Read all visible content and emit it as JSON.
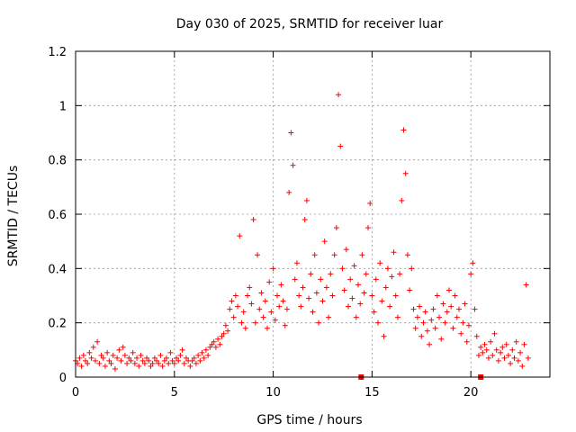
{
  "chart_data": {
    "type": "scatter",
    "title": "Day 030 of 2025, SRMTID for receiver luar",
    "xlabel": "GPS time / hours",
    "ylabel": "SRMTID / TECUs",
    "xlim": [
      0,
      24
    ],
    "ylim": [
      0,
      1.2
    ],
    "xticks": [
      0,
      5,
      10,
      15,
      20
    ],
    "yticks": [
      0,
      0.2,
      0.4,
      0.6,
      0.8,
      1,
      1.2
    ],
    "ytick_labels": [
      "0",
      "0.2",
      "0.4",
      "0.6",
      "0.8",
      "1",
      "1.2"
    ],
    "grid": true,
    "marker": "+",
    "color": "#ff0000",
    "ground_markers": [
      {
        "x": 14.45,
        "y": 0
      },
      {
        "x": 20.5,
        "y": 0
      }
    ],
    "series": [
      {
        "name": "SRMTID",
        "points": [
          [
            0.0,
            0.06
          ],
          [
            0.1,
            0.05
          ],
          [
            0.2,
            0.07
          ],
          [
            0.3,
            0.04
          ],
          [
            0.4,
            0.08
          ],
          [
            0.5,
            0.06
          ],
          [
            0.6,
            0.05
          ],
          [
            0.7,
            0.09
          ],
          [
            0.8,
            0.07
          ],
          [
            0.9,
            0.11
          ],
          [
            1.0,
            0.06
          ],
          [
            1.1,
            0.13
          ],
          [
            1.2,
            0.05
          ],
          [
            1.3,
            0.08
          ],
          [
            1.4,
            0.07
          ],
          [
            1.5,
            0.04
          ],
          [
            1.6,
            0.09
          ],
          [
            1.7,
            0.06
          ],
          [
            1.8,
            0.05
          ],
          [
            1.9,
            0.08
          ],
          [
            2.0,
            0.03
          ],
          [
            2.1,
            0.07
          ],
          [
            2.2,
            0.1
          ],
          [
            2.3,
            0.06
          ],
          [
            2.4,
            0.11
          ],
          [
            2.5,
            0.08
          ],
          [
            2.6,
            0.05
          ],
          [
            2.7,
            0.07
          ],
          [
            2.8,
            0.06
          ],
          [
            2.9,
            0.09
          ],
          [
            3.0,
            0.05
          ],
          [
            3.1,
            0.07
          ],
          [
            3.2,
            0.04
          ],
          [
            3.3,
            0.08
          ],
          [
            3.4,
            0.06
          ],
          [
            3.5,
            0.05
          ],
          [
            3.6,
            0.07
          ],
          [
            3.7,
            0.06
          ],
          [
            3.8,
            0.04
          ],
          [
            3.9,
            0.05
          ],
          [
            4.0,
            0.07
          ],
          [
            4.1,
            0.06
          ],
          [
            4.2,
            0.05
          ],
          [
            4.3,
            0.08
          ],
          [
            4.4,
            0.04
          ],
          [
            4.5,
            0.06
          ],
          [
            4.6,
            0.07
          ],
          [
            4.7,
            0.05
          ],
          [
            4.8,
            0.09
          ],
          [
            4.9,
            0.06
          ],
          [
            5.0,
            0.05
          ],
          [
            5.1,
            0.07
          ],
          [
            5.2,
            0.06
          ],
          [
            5.3,
            0.08
          ],
          [
            5.4,
            0.1
          ],
          [
            5.5,
            0.05
          ],
          [
            5.6,
            0.07
          ],
          [
            5.7,
            0.06
          ],
          [
            5.8,
            0.04
          ],
          [
            5.9,
            0.06
          ],
          [
            6.0,
            0.07
          ],
          [
            6.1,
            0.05
          ],
          [
            6.2,
            0.08
          ],
          [
            6.3,
            0.06
          ],
          [
            6.4,
            0.09
          ],
          [
            6.5,
            0.07
          ],
          [
            6.6,
            0.1
          ],
          [
            6.7,
            0.08
          ],
          [
            6.8,
            0.11
          ],
          [
            6.9,
            0.12
          ],
          [
            7.0,
            0.13
          ],
          [
            7.1,
            0.11
          ],
          [
            7.2,
            0.14
          ],
          [
            7.3,
            0.12
          ],
          [
            7.4,
            0.15
          ],
          [
            7.5,
            0.16
          ],
          [
            7.6,
            0.19
          ],
          [
            7.7,
            0.17
          ],
          [
            7.8,
            0.25
          ],
          [
            7.9,
            0.28
          ],
          [
            8.0,
            0.22
          ],
          [
            8.1,
            0.3
          ],
          [
            8.2,
            0.26
          ],
          [
            8.3,
            0.52
          ],
          [
            8.4,
            0.2
          ],
          [
            8.5,
            0.24
          ],
          [
            8.6,
            0.18
          ],
          [
            8.7,
            0.3
          ],
          [
            8.8,
            0.33
          ],
          [
            8.9,
            0.27
          ],
          [
            9.0,
            0.58
          ],
          [
            9.1,
            0.2
          ],
          [
            9.2,
            0.45
          ],
          [
            9.3,
            0.25
          ],
          [
            9.4,
            0.31
          ],
          [
            9.5,
            0.22
          ],
          [
            9.6,
            0.28
          ],
          [
            9.7,
            0.18
          ],
          [
            9.8,
            0.35
          ],
          [
            9.9,
            0.24
          ],
          [
            10.0,
            0.4
          ],
          [
            10.1,
            0.21
          ],
          [
            10.2,
            0.3
          ],
          [
            10.3,
            0.26
          ],
          [
            10.4,
            0.34
          ],
          [
            10.5,
            0.28
          ],
          [
            10.6,
            0.19
          ],
          [
            10.7,
            0.25
          ],
          [
            10.8,
            0.68
          ],
          [
            10.9,
            0.9
          ],
          [
            11.0,
            0.78
          ],
          [
            11.1,
            0.36
          ],
          [
            11.2,
            0.42
          ],
          [
            11.3,
            0.3
          ],
          [
            11.4,
            0.26
          ],
          [
            11.5,
            0.33
          ],
          [
            11.6,
            0.58
          ],
          [
            11.7,
            0.65
          ],
          [
            11.8,
            0.29
          ],
          [
            11.9,
            0.38
          ],
          [
            12.0,
            0.24
          ],
          [
            12.1,
            0.45
          ],
          [
            12.2,
            0.31
          ],
          [
            12.3,
            0.2
          ],
          [
            12.4,
            0.36
          ],
          [
            12.5,
            0.28
          ],
          [
            12.6,
            0.5
          ],
          [
            12.7,
            0.33
          ],
          [
            12.8,
            0.22
          ],
          [
            12.9,
            0.38
          ],
          [
            13.0,
            0.3
          ],
          [
            13.1,
            0.45
          ],
          [
            13.2,
            0.55
          ],
          [
            13.3,
            1.04
          ],
          [
            13.4,
            0.85
          ],
          [
            13.5,
            0.4
          ],
          [
            13.6,
            0.32
          ],
          [
            13.7,
            0.47
          ],
          [
            13.8,
            0.26
          ],
          [
            13.9,
            0.36
          ],
          [
            14.0,
            0.29
          ],
          [
            14.1,
            0.41
          ],
          [
            14.2,
            0.22
          ],
          [
            14.3,
            0.34
          ],
          [
            14.4,
            0.27
          ],
          [
            14.5,
            0.45
          ],
          [
            14.6,
            0.31
          ],
          [
            14.7,
            0.38
          ],
          [
            14.8,
            0.55
          ],
          [
            14.9,
            0.64
          ],
          [
            15.0,
            0.3
          ],
          [
            15.1,
            0.24
          ],
          [
            15.2,
            0.36
          ],
          [
            15.3,
            0.2
          ],
          [
            15.4,
            0.42
          ],
          [
            15.5,
            0.28
          ],
          [
            15.6,
            0.15
          ],
          [
            15.7,
            0.33
          ],
          [
            15.8,
            0.4
          ],
          [
            15.9,
            0.26
          ],
          [
            16.0,
            0.37
          ],
          [
            16.1,
            0.46
          ],
          [
            16.2,
            0.3
          ],
          [
            16.3,
            0.22
          ],
          [
            16.4,
            0.38
          ],
          [
            16.5,
            0.65
          ],
          [
            16.6,
            0.91
          ],
          [
            16.7,
            0.75
          ],
          [
            16.8,
            0.45
          ],
          [
            16.9,
            0.32
          ],
          [
            17.0,
            0.4
          ],
          [
            17.1,
            0.25
          ],
          [
            17.2,
            0.18
          ],
          [
            17.3,
            0.22
          ],
          [
            17.4,
            0.26
          ],
          [
            17.5,
            0.15
          ],
          [
            17.6,
            0.2
          ],
          [
            17.7,
            0.24
          ],
          [
            17.8,
            0.17
          ],
          [
            17.9,
            0.12
          ],
          [
            18.0,
            0.21
          ],
          [
            18.1,
            0.25
          ],
          [
            18.2,
            0.18
          ],
          [
            18.3,
            0.3
          ],
          [
            18.4,
            0.22
          ],
          [
            18.5,
            0.14
          ],
          [
            18.6,
            0.27
          ],
          [
            18.7,
            0.2
          ],
          [
            18.8,
            0.24
          ],
          [
            18.9,
            0.32
          ],
          [
            19.0,
            0.26
          ],
          [
            19.1,
            0.18
          ],
          [
            19.2,
            0.3
          ],
          [
            19.3,
            0.22
          ],
          [
            19.4,
            0.25
          ],
          [
            19.5,
            0.16
          ],
          [
            19.6,
            0.2
          ],
          [
            19.7,
            0.27
          ],
          [
            19.8,
            0.13
          ],
          [
            19.9,
            0.19
          ],
          [
            20.0,
            0.38
          ],
          [
            20.1,
            0.42
          ],
          [
            20.2,
            0.25
          ],
          [
            20.3,
            0.15
          ],
          [
            20.4,
            0.08
          ],
          [
            20.5,
            0.11
          ],
          [
            20.6,
            0.09
          ],
          [
            20.7,
            0.12
          ],
          [
            20.8,
            0.1
          ],
          [
            20.9,
            0.07
          ],
          [
            21.0,
            0.13
          ],
          [
            21.1,
            0.08
          ],
          [
            21.2,
            0.16
          ],
          [
            21.3,
            0.1
          ],
          [
            21.4,
            0.06
          ],
          [
            21.5,
            0.09
          ],
          [
            21.6,
            0.11
          ],
          [
            21.7,
            0.07
          ],
          [
            21.8,
            0.12
          ],
          [
            21.9,
            0.08
          ],
          [
            22.0,
            0.05
          ],
          [
            22.1,
            0.1
          ],
          [
            22.2,
            0.07
          ],
          [
            22.3,
            0.13
          ],
          [
            22.4,
            0.06
          ],
          [
            22.5,
            0.09
          ],
          [
            22.6,
            0.04
          ],
          [
            22.7,
            0.12
          ],
          [
            22.8,
            0.34
          ],
          [
            22.9,
            0.07
          ]
        ]
      }
    ]
  }
}
